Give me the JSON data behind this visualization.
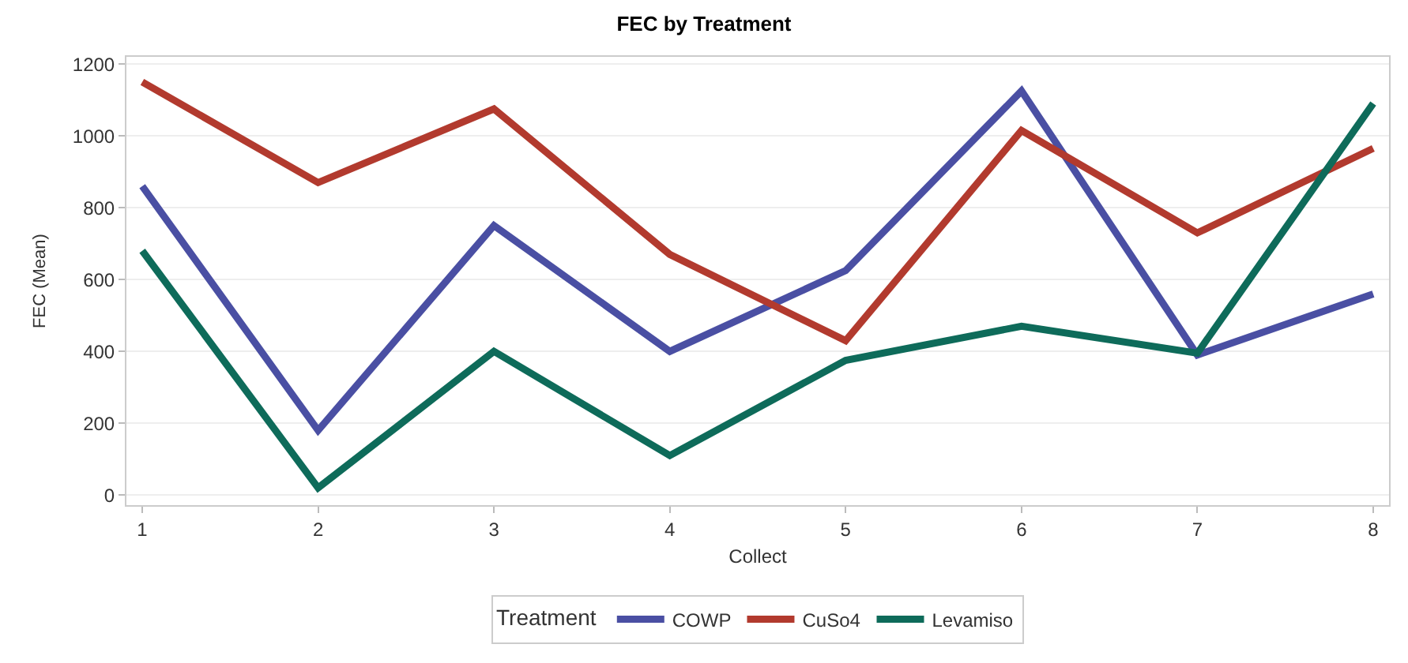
{
  "chart_data": {
    "type": "line",
    "title": "FEC by Treatment",
    "xlabel": "Collect",
    "ylabel": "FEC (Mean)",
    "legend_title": "Treatment",
    "x": [
      1,
      2,
      3,
      4,
      5,
      6,
      7,
      8
    ],
    "series": [
      {
        "name": "COWP",
        "color": "#4a4fa3",
        "values": [
          860,
          180,
          750,
          400,
          625,
          1125,
          390,
          560
        ]
      },
      {
        "name": "CuSo4",
        "color": "#b23a2e",
        "values": [
          1150,
          870,
          1075,
          670,
          430,
          1015,
          730,
          965
        ]
      },
      {
        "name": "Levamiso",
        "color": "#0e6b5a",
        "values": [
          680,
          20,
          400,
          110,
          375,
          470,
          395,
          1090
        ]
      }
    ],
    "xlim": [
      0.91,
      8.09
    ],
    "xticks": [
      1,
      2,
      3,
      4,
      5,
      6,
      7,
      8
    ],
    "ylim": [
      -28,
      1220
    ],
    "yticks": [
      0,
      200,
      400,
      600,
      800,
      1000,
      1200
    ],
    "grid": "y",
    "legend": "bottom",
    "marker": "none",
    "line_style": "solid"
  }
}
